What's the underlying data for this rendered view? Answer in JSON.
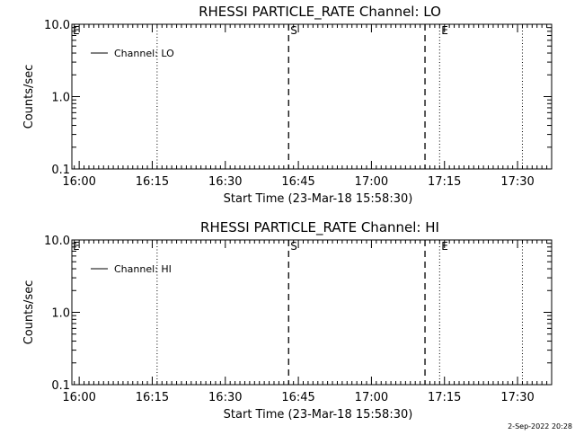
{
  "footer": {
    "timestamp": "2-Sep-2022 20:28"
  },
  "chart_data": [
    {
      "type": "line",
      "title": "RHESSI PARTICLE_RATE Channel: LO",
      "xlabel": "Start Time (23-Mar-18 15:58:30)",
      "ylabel": "Counts/sec",
      "y_scale": "log",
      "ylim": [
        0.1,
        10.0
      ],
      "y_ticks": [
        "10.0",
        "1.0",
        "0.1"
      ],
      "xlim": [
        "15:58:30",
        "17:37:00"
      ],
      "x_ticks": [
        "16:00",
        "16:15",
        "16:30",
        "16:45",
        "17:00",
        "17:15",
        "17:30"
      ],
      "series": [
        {
          "name": "Channel: LO",
          "x": [],
          "y": []
        }
      ],
      "legend": "top-left",
      "markers": [
        {
          "label": "E",
          "time": "15:58:30",
          "style": "dotted"
        },
        {
          "label": "",
          "time": "16:16",
          "style": "dotted"
        },
        {
          "label": "S",
          "time": "16:43",
          "style": "dashed"
        },
        {
          "label": "",
          "time": "17:11",
          "style": "dashed"
        },
        {
          "label": "E",
          "time": "17:14",
          "style": "dotted"
        },
        {
          "label": "",
          "time": "17:31",
          "style": "dotted"
        }
      ]
    },
    {
      "type": "line",
      "title": "RHESSI PARTICLE_RATE Channel: HI",
      "xlabel": "Start Time (23-Mar-18 15:58:30)",
      "ylabel": "Counts/sec",
      "y_scale": "log",
      "ylim": [
        0.1,
        10.0
      ],
      "y_ticks": [
        "10.0",
        "1.0",
        "0.1"
      ],
      "xlim": [
        "15:58:30",
        "17:37:00"
      ],
      "x_ticks": [
        "16:00",
        "16:15",
        "16:30",
        "16:45",
        "17:00",
        "17:15",
        "17:30"
      ],
      "series": [
        {
          "name": "Channel: HI",
          "x": [],
          "y": []
        }
      ],
      "legend": "top-left",
      "markers": [
        {
          "label": "E",
          "time": "15:58:30",
          "style": "dotted"
        },
        {
          "label": "",
          "time": "16:16",
          "style": "dotted"
        },
        {
          "label": "S",
          "time": "16:43",
          "style": "dashed"
        },
        {
          "label": "",
          "time": "17:11",
          "style": "dashed"
        },
        {
          "label": "E",
          "time": "17:14",
          "style": "dotted"
        },
        {
          "label": "",
          "time": "17:31",
          "style": "dotted"
        }
      ]
    }
  ]
}
